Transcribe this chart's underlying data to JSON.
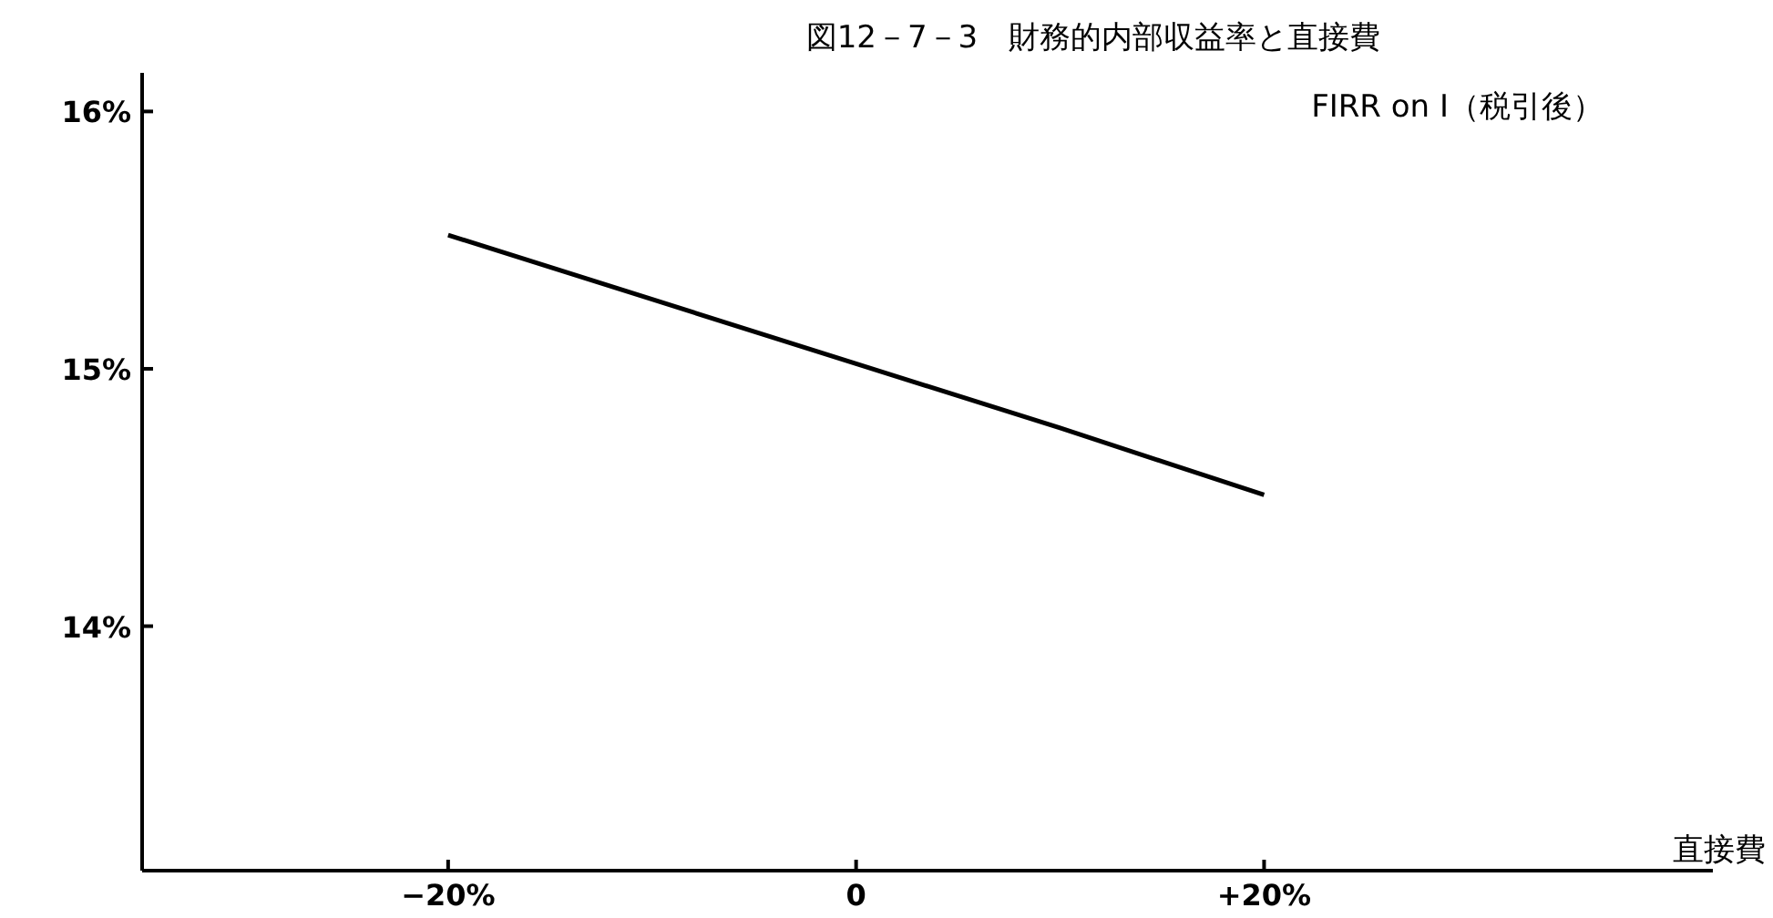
{
  "chart_data": {
    "type": "line",
    "title": "図12－7－3　財務的内部収益率と直接費",
    "subtitle": "FIRR on I（税引後）",
    "xlabel": "直接費",
    "x": [
      -20,
      -10,
      0,
      10,
      20
    ],
    "series": [
      {
        "color": "#000000",
        "values": [
          15.52,
          15.27,
          15.02,
          14.77,
          14.51
        ]
      }
    ],
    "xlim": [
      -35,
      42
    ],
    "ylim": [
      13.05,
      16.15
    ],
    "xticks": [
      {
        "value": -20,
        "label": "−20%"
      },
      {
        "value": 0,
        "label": "0"
      },
      {
        "value": 20,
        "label": "+20%"
      }
    ],
    "yticks": [
      {
        "value": 14,
        "label": "14%"
      },
      {
        "value": 15,
        "label": "15%"
      },
      {
        "value": 16,
        "label": "16%"
      }
    ],
    "marker": "none",
    "line_style": "solid"
  }
}
